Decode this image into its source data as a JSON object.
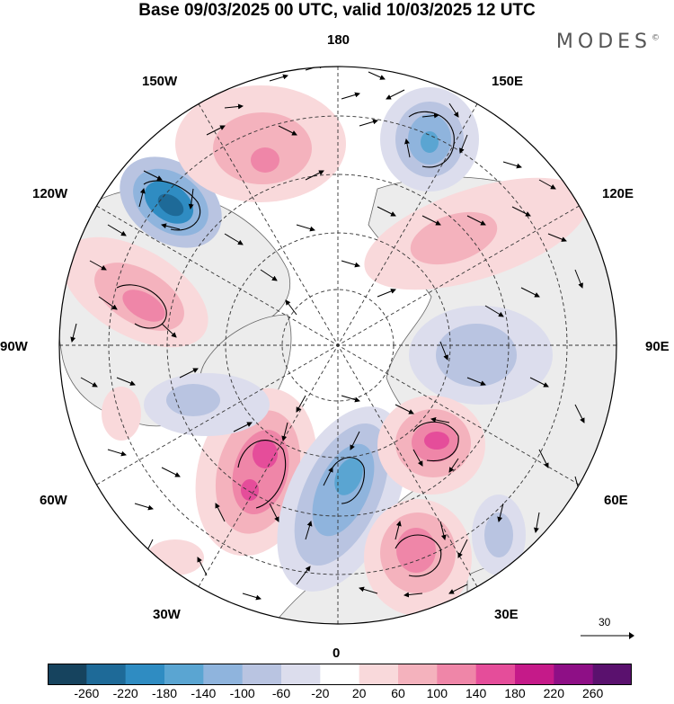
{
  "title": "Base 09/03/2025 00 UTC, valid 10/03/2025 12 UTC",
  "brand": "MODES",
  "brand_mark": "©",
  "longitude_labels": {
    "lon_180": "180",
    "lon_150e": "150E",
    "lon_120e": "120E",
    "lon_90e": "90E",
    "lon_60e": "60E",
    "lon_30e": "30E",
    "lon_0": "0",
    "lon_30w": "30W",
    "lon_60w": "60W",
    "lon_90w": "90W",
    "lon_120w": "120W",
    "lon_150w": "150W"
  },
  "vector_scale_label": "30",
  "colorbar": {
    "labels": [
      "-260",
      "-220",
      "-180",
      "-140",
      "-100",
      "-60",
      "-20",
      "20",
      "60",
      "100",
      "140",
      "180",
      "220",
      "260"
    ],
    "colors": [
      "#16435e",
      "#1e6a98",
      "#2f8cc2",
      "#5aa5d2",
      "#8fb4dd",
      "#b9c4e1",
      "#dcdded",
      "#ffffff",
      "#f9d9db",
      "#f4b2bd",
      "#ef86a8",
      "#e54d9a",
      "#c51a89",
      "#8e0f86",
      "#5a116e"
    ]
  },
  "map_style": {
    "projection": "north polar stereographic",
    "land_color": "#ececec",
    "coast_color": "#555555",
    "grid_style": "dashed"
  }
}
